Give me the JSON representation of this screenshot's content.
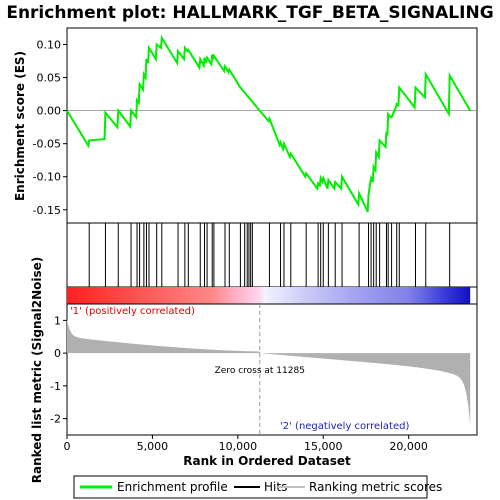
{
  "chart_data": {
    "type": "line",
    "title": "Enrichment plot: HALLMARK_TGF_BETA_SIGNALING",
    "ylabel_top": "Enrichment score (ES)",
    "ylabel_bottom": "Ranked list metric (Signal2Noise)",
    "xlabel": "Rank in Ordered Dataset",
    "xlim": [
      0,
      24000
    ],
    "ylim_top": [
      -0.17,
      0.125
    ],
    "ylim_bottom": [
      -2.5,
      1.5
    ],
    "x_ticks": [
      0,
      5000,
      10000,
      15000,
      20000
    ],
    "x_tick_labels": [
      "0",
      "5,000",
      "10,000",
      "15,000",
      "20,000"
    ],
    "y_ticks_top": [
      0.1,
      0.05,
      0.0,
      -0.05,
      -0.1,
      -0.15
    ],
    "y_tick_labels_top": [
      "0.10",
      "0.05",
      "0.00",
      "-0.05",
      "-0.10",
      "-0.15"
    ],
    "y_ticks_bottom": [
      1,
      0,
      -1,
      -2
    ],
    "y_tick_labels_bottom": [
      "1",
      "0",
      "-1",
      "-2"
    ],
    "zero_cross": 11285,
    "zero_cross_label": "Zero cross at 11285",
    "pos_label": "'1' (positively correlated)",
    "neg_label": "'2' (negatively correlated)",
    "total_genes": 23600,
    "hits": [
      1300,
      2250,
      3000,
      3750,
      4100,
      4250,
      4500,
      4650,
      4800,
      5250,
      5550,
      6500,
      6900,
      7100,
      7800,
      8050,
      8200,
      8500,
      8600,
      9250,
      9500,
      10150,
      10400,
      10550,
      10650,
      10750,
      10850,
      11850,
      12500,
      12700,
      13100,
      14000,
      14700,
      14850,
      15000,
      15300,
      15700,
      16100,
      17100,
      17650,
      17800,
      17950,
      18100,
      18300,
      18700,
      18800,
      19000,
      19300,
      19450,
      20400,
      21000,
      22400
    ],
    "es_curve": [
      [
        0,
        0.0
      ],
      [
        1250,
        -0.053
      ],
      [
        1300,
        -0.045
      ],
      [
        2200,
        -0.043
      ],
      [
        2250,
        -0.003
      ],
      [
        2950,
        -0.025
      ],
      [
        3000,
        0.0
      ],
      [
        3700,
        -0.024
      ],
      [
        3750,
        0.0
      ],
      [
        4050,
        -0.01
      ],
      [
        4100,
        0.016
      ],
      [
        4200,
        0.012
      ],
      [
        4250,
        0.04
      ],
      [
        4450,
        0.032
      ],
      [
        4500,
        0.055
      ],
      [
        4600,
        0.05
      ],
      [
        4650,
        0.078
      ],
      [
        4750,
        0.072
      ],
      [
        4800,
        0.095
      ],
      [
        5200,
        0.078
      ],
      [
        5250,
        0.1
      ],
      [
        5500,
        0.095
      ],
      [
        5550,
        0.11
      ],
      [
        6450,
        0.072
      ],
      [
        6500,
        0.09
      ],
      [
        6850,
        0.078
      ],
      [
        6900,
        0.095
      ],
      [
        7050,
        0.09
      ],
      [
        7100,
        0.092
      ],
      [
        7750,
        0.065
      ],
      [
        7800,
        0.078
      ],
      [
        8000,
        0.068
      ],
      [
        8050,
        0.08
      ],
      [
        8150,
        0.072
      ],
      [
        8200,
        0.08
      ],
      [
        8450,
        0.07
      ],
      [
        8500,
        0.085
      ],
      [
        8550,
        0.078
      ],
      [
        8600,
        0.083
      ],
      [
        9200,
        0.06
      ],
      [
        9250,
        0.067
      ],
      [
        9450,
        0.058
      ],
      [
        9500,
        0.062
      ],
      [
        10100,
        0.037
      ],
      [
        10150,
        0.035
      ],
      [
        11800,
        -0.016
      ],
      [
        11850,
        -0.012
      ],
      [
        12450,
        -0.052
      ],
      [
        12500,
        -0.048
      ],
      [
        12650,
        -0.058
      ],
      [
        12700,
        -0.05
      ],
      [
        13050,
        -0.07
      ],
      [
        13100,
        -0.065
      ],
      [
        13950,
        -0.1
      ],
      [
        14000,
        -0.095
      ],
      [
        14650,
        -0.118
      ],
      [
        14700,
        -0.11
      ],
      [
        14800,
        -0.113
      ],
      [
        14850,
        -0.102
      ],
      [
        14950,
        -0.108
      ],
      [
        15000,
        -0.102
      ],
      [
        15250,
        -0.118
      ],
      [
        15300,
        -0.105
      ],
      [
        15650,
        -0.118
      ],
      [
        15700,
        -0.108
      ],
      [
        16050,
        -0.118
      ],
      [
        16100,
        -0.1
      ],
      [
        17050,
        -0.142
      ],
      [
        17100,
        -0.125
      ],
      [
        17600,
        -0.153
      ],
      [
        17650,
        -0.128
      ],
      [
        17750,
        -0.11
      ],
      [
        17800,
        -0.102
      ],
      [
        17900,
        -0.108
      ],
      [
        17950,
        -0.085
      ],
      [
        18050,
        -0.09
      ],
      [
        18100,
        -0.063
      ],
      [
        18250,
        -0.07
      ],
      [
        18300,
        -0.045
      ],
      [
        18650,
        -0.055
      ],
      [
        18700,
        -0.032
      ],
      [
        18750,
        -0.038
      ],
      [
        18800,
        -0.005
      ],
      [
        18950,
        -0.01
      ],
      [
        19000,
        -0.01
      ],
      [
        19250,
        0.005
      ],
      [
        19300,
        0.01
      ],
      [
        19400,
        0.008
      ],
      [
        19450,
        0.035
      ],
      [
        20350,
        0.005
      ],
      [
        20400,
        0.035
      ],
      [
        20950,
        0.02
      ],
      [
        21000,
        0.055
      ],
      [
        22350,
        -0.005
      ],
      [
        22400,
        0.053
      ],
      [
        23600,
        0.0
      ]
    ]
  },
  "legend": {
    "items": [
      {
        "label": "Enrichment profile",
        "color": "#00ee00"
      },
      {
        "label": "Hits",
        "color": "#000000"
      },
      {
        "label": "Ranking metric scores",
        "color": "#c0c0c0"
      }
    ]
  },
  "colors": {
    "es_line": "#00ee00",
    "hit": "#000000",
    "metric_fill": "#b0b0b0",
    "pos_strong": "#ee2020",
    "neg_strong": "#2020d0"
  }
}
